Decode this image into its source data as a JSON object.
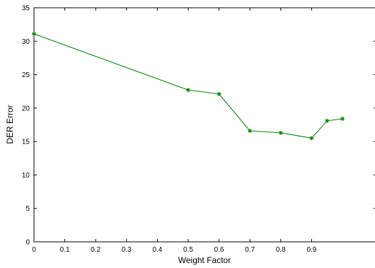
{
  "chart_data": {
    "type": "line",
    "title": "",
    "xlabel": "Weight Factor",
    "ylabel": "DER Error",
    "xlim": [
      0,
      1
    ],
    "ylim": [
      0,
      35
    ],
    "x_ticks": [
      "0",
      "0.1",
      "0.2",
      "0.3",
      "0.4",
      "0.5",
      "0.6",
      "0.7",
      "0.8",
      "0.9"
    ],
    "y_ticks": [
      "0",
      "5",
      "10",
      "15",
      "20",
      "25",
      "30",
      "35"
    ],
    "grid": false,
    "series": [
      {
        "color": "#008000",
        "marker": "asterisk",
        "x": [
          0,
          0.5,
          0.6,
          0.7,
          0.8,
          0.9,
          0.95,
          1.0
        ],
        "y": [
          31.1,
          22.7,
          22.1,
          16.6,
          16.3,
          15.5,
          18.1,
          18.4
        ]
      }
    ]
  }
}
